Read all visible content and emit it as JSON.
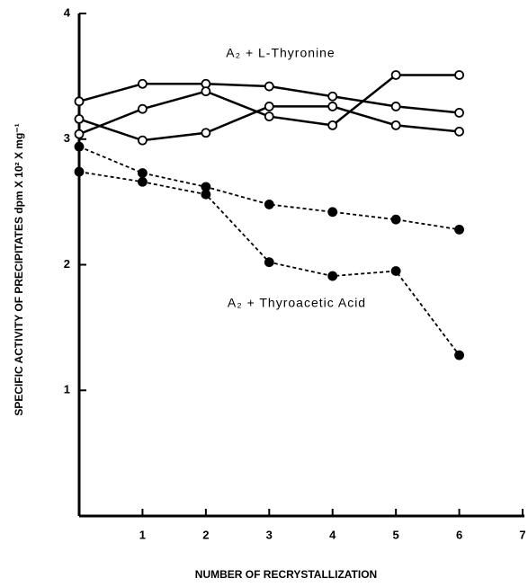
{
  "chart_data": {
    "type": "line",
    "ylabel": "SPECIFIC ACTIVITY OF PRECIPITATES dpm X 10² X mg⁻¹",
    "xlabel": "NUMBER OF RECRYSTALLIZATION",
    "annotations": [
      "A₂ + L-Thyronine",
      "A₂ + Thyroacetic Acid"
    ],
    "x": [
      0,
      1,
      2,
      3,
      4,
      5,
      6
    ],
    "series": [
      {
        "color": "#000000",
        "style": "solid",
        "marker": "open",
        "values": [
          3.3,
          3.44,
          3.44,
          3.42,
          3.34,
          3.26,
          3.21
        ]
      },
      {
        "color": "#000000",
        "style": "solid",
        "marker": "open",
        "values": [
          3.16,
          2.99,
          3.05,
          3.26,
          3.26,
          3.11,
          3.06
        ]
      },
      {
        "color": "#000000",
        "style": "solid",
        "marker": "open",
        "values": [
          3.04,
          3.24,
          3.38,
          3.18,
          3.11,
          3.51,
          3.51
        ]
      },
      {
        "color": "#000000",
        "style": "dashed",
        "marker": "filled",
        "values": [
          2.94,
          2.73,
          2.62,
          2.48,
          2.42,
          2.36,
          2.28
        ]
      },
      {
        "color": "#000000",
        "style": "dashed",
        "marker": "filled",
        "values": [
          2.74,
          2.66,
          2.56,
          2.02,
          1.91,
          1.95,
          1.28
        ]
      }
    ],
    "xlim": [
      0,
      7
    ],
    "xticks": [
      1,
      2,
      3,
      4,
      5,
      6,
      7
    ],
    "ylim": [
      0,
      4
    ],
    "yticks": [
      1,
      2,
      3,
      4
    ],
    "grid": false
  }
}
